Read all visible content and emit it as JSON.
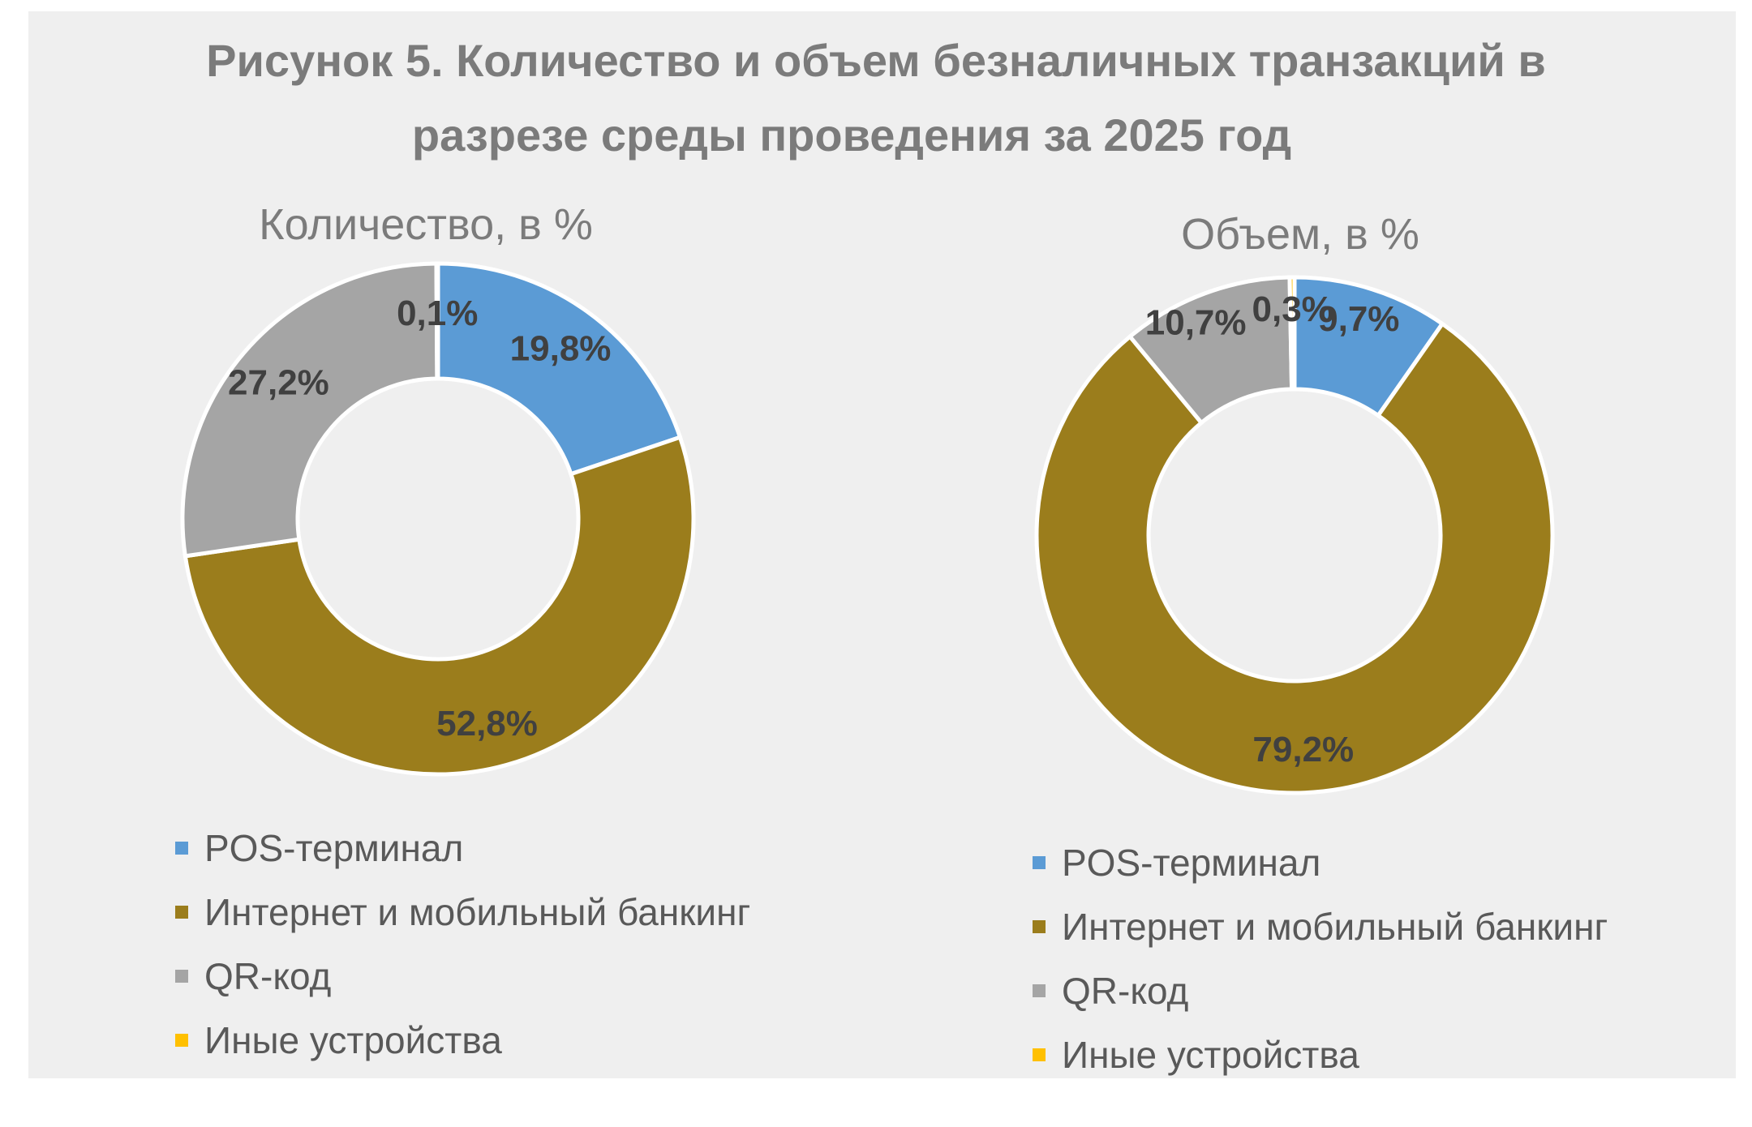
{
  "title_line1": "Рисунок 5. Количество и объем безналичных транзакций в",
  "title_line2": "разрезе среды проведения за 2025 год",
  "colors": {
    "POS-терминал": "#5b9bd5",
    "Интернет и мобильный банкинг": "#9b7d1c",
    "QR-код": "#a5a5a5",
    "Иные устройства": "#ffc000",
    "background": "#efefef"
  },
  "chart_data": [
    {
      "type": "pie",
      "subtype": "donut",
      "title": "Количество, в %",
      "categories": [
        "POS-терминал",
        "Интернет и мобильный банкинг",
        "QR-код",
        "Иные устройства"
      ],
      "values": [
        19.8,
        52.8,
        27.2,
        0.1
      ],
      "labels": [
        "19,8%",
        "52,8%",
        "27,2%",
        "0,1%"
      ],
      "legend_position": "bottom"
    },
    {
      "type": "pie",
      "subtype": "donut",
      "title": "Объем, в %",
      "categories": [
        "POS-терминал",
        "Интернет и мобильный банкинг",
        "QR-код",
        "Иные устройства"
      ],
      "values": [
        9.7,
        79.2,
        10.7,
        0.3
      ],
      "labels": [
        "9,7%",
        "79,2%",
        "10,7%",
        "0,3%"
      ],
      "legend_position": "bottom"
    }
  ]
}
